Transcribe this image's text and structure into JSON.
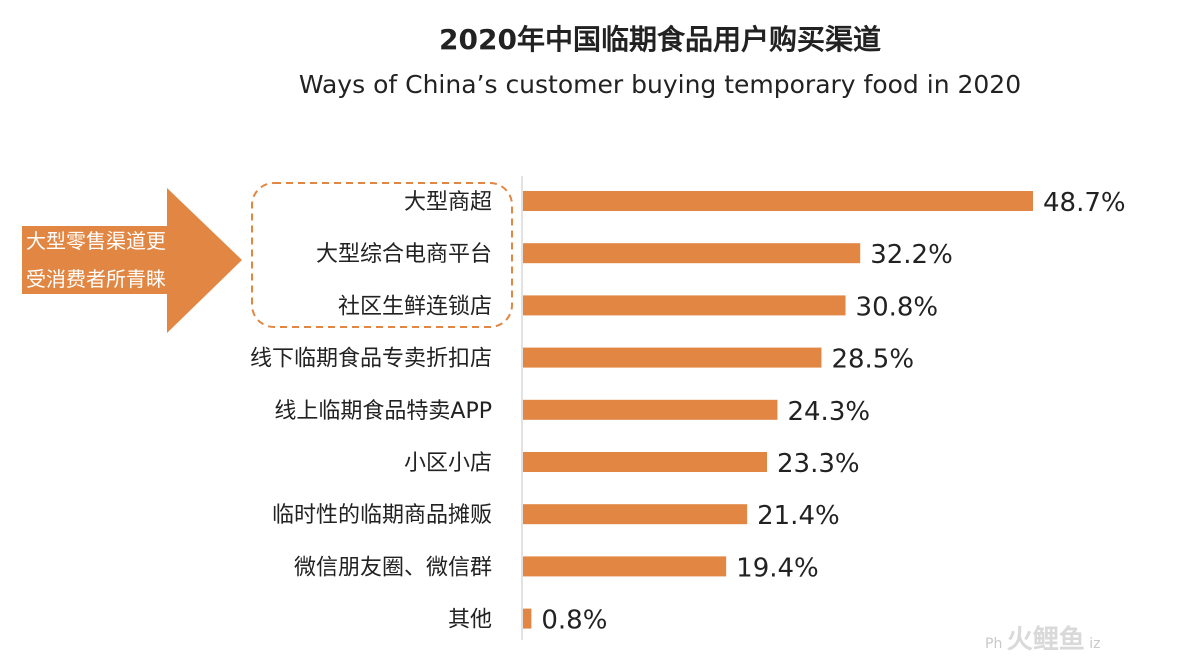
{
  "chart_data": {
    "type": "bar",
    "orientation": "horizontal",
    "title": "2020年中国临期食品用户购买渠道",
    "subtitle": "Ways of China’s customer buying temporary food in 2020",
    "categories": [
      "大型商超",
      "大型综合电商平台",
      "社区生鲜连锁店",
      "线下临期食品专卖折扣店",
      "线上临期食品特卖APP",
      "小区小店",
      "临时性的临期商品摊贩",
      "微信朋友圈、微信群",
      "其他"
    ],
    "values": [
      48.7,
      32.2,
      30.8,
      28.5,
      24.3,
      23.3,
      21.4,
      19.4,
      0.8
    ],
    "value_labels": [
      "48.7%",
      "32.2%",
      "30.8%",
      "28.5%",
      "24.3%",
      "23.3%",
      "21.4%",
      "19.4%",
      "0.8%"
    ],
    "unit": "%",
    "xlim": [
      0,
      50
    ],
    "grid": false,
    "bar_color": "#e28743",
    "highlight": {
      "categories": [
        "大型商超",
        "大型综合电商平台",
        "社区生鲜连锁店"
      ],
      "callout_lines": [
        "大型零售渠道更",
        "受消费者所青睐"
      ],
      "callout_color": "#e28743",
      "outline_color": "#e28743"
    }
  },
  "watermark": {
    "text": "Ph",
    "logo_text": "火鲤鱼",
    "suffix": "iz"
  }
}
